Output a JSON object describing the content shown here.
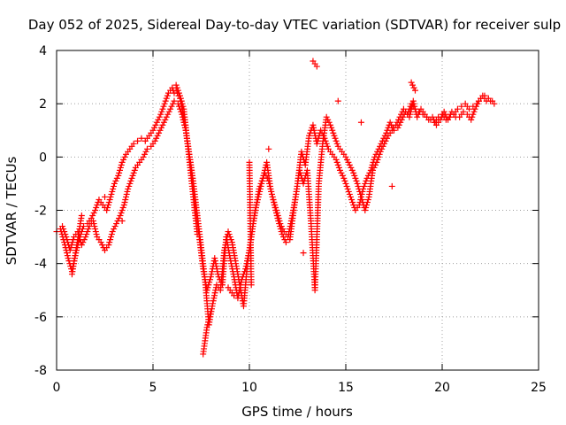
{
  "chart_data": {
    "type": "scatter",
    "title": "Day 052 of 2025, Sidereal Day-to-day VTEC variation (SDTVAR) for receiver sulp",
    "xlabel": "GPS time / hours",
    "ylabel": "SDTVAR / TECUs",
    "xlim": [
      0,
      25
    ],
    "ylim": [
      -8,
      4
    ],
    "x_ticks": [
      "0",
      "5",
      "10",
      "15",
      "20",
      "25"
    ],
    "y_ticks": [
      "4",
      "2",
      "0",
      "-2",
      "-4",
      "-6",
      "-8"
    ],
    "grid": true,
    "marker": "+",
    "series_color": "#ff0000",
    "series": [
      {
        "x": [
          0.0,
          0.2,
          0.4,
          0.6,
          0.8,
          1.0,
          1.2,
          1.4,
          1.6,
          1.8,
          2.0,
          2.2,
          2.4,
          2.6,
          2.8,
          3.0,
          3.2,
          3.4,
          3.6,
          3.8,
          4.0,
          4.2,
          4.4,
          4.6,
          4.8,
          5.0,
          5.2,
          5.4,
          5.6,
          5.8,
          6.0,
          6.1,
          6.2,
          6.4,
          6.6,
          6.8,
          7.0,
          7.2,
          7.4,
          7.6,
          7.8,
          8.0,
          8.2,
          8.4,
          8.6,
          8.8,
          9.0,
          9.2,
          9.4,
          9.6,
          9.8,
          10.0,
          10.2,
          10.5,
          10.8,
          11.0,
          11.2,
          11.4,
          11.6,
          11.8,
          12.0,
          12.2,
          12.4,
          12.6,
          12.8,
          13.0,
          13.2,
          13.4,
          13.6,
          13.8,
          14.0,
          14.2,
          14.4,
          14.6,
          14.8,
          15.0,
          15.2,
          15.4,
          15.6,
          15.8,
          16.0,
          16.2,
          16.4,
          16.6,
          16.8,
          17.0,
          17.2,
          17.4,
          17.6,
          17.8,
          18.0,
          18.2,
          18.4,
          18.6,
          18.8,
          19.0,
          19.2,
          19.4,
          19.6,
          19.8,
          20.0,
          20.2,
          20.4,
          20.6,
          20.8,
          21.0,
          21.2,
          21.4,
          21.6,
          21.8,
          22.0,
          22.2,
          22.4,
          22.6,
          22.7
        ],
        "y": [
          -2.8,
          -2.7,
          -3.2,
          -3.8,
          -4.3,
          -3.6,
          -3.0,
          -2.6,
          -2.5,
          -2.3,
          -2.0,
          -1.6,
          -1.8,
          -2.0,
          -1.5,
          -1.0,
          -0.7,
          -0.2,
          0.1,
          0.3,
          0.5,
          0.6,
          0.7,
          0.6,
          0.8,
          1.0,
          1.3,
          1.6,
          2.0,
          2.4,
          2.6,
          2.4,
          2.5,
          2.2,
          1.5,
          0.5,
          -0.5,
          -1.8,
          -3.0,
          -4.2,
          -5.0,
          -4.5,
          -3.8,
          -4.5,
          -4.8,
          -3.0,
          -3.8,
          -4.5,
          -5.3,
          -4.6,
          -4.2,
          -3.5,
          -2.5,
          -1.2,
          -0.6,
          -0.9,
          -1.5,
          -2.0,
          -2.5,
          -2.8,
          -3.0,
          -2.3,
          -1.5,
          -0.5,
          -1.0,
          -0.5,
          -2.5,
          -5.0,
          -1.0,
          0.5,
          1.5,
          1.2,
          0.8,
          0.4,
          0.2,
          0.0,
          -0.3,
          -0.6,
          -1.0,
          -1.5,
          -2.0,
          -1.5,
          -0.5,
          -0.2,
          0.2,
          0.5,
          0.8,
          1.0,
          1.2,
          1.5,
          1.8,
          1.6,
          2.0,
          1.8,
          1.7,
          1.6,
          1.5,
          1.4,
          1.3,
          1.5,
          1.6,
          1.4,
          1.5,
          1.6,
          1.8,
          1.9,
          2.0,
          1.8,
          1.9,
          2.0,
          2.2,
          2.3,
          2.2,
          2.1,
          2.0
        ]
      },
      {
        "x": [
          0.3,
          0.5,
          0.7,
          0.9,
          1.1,
          1.3,
          1.5,
          1.7,
          1.9,
          2.1,
          2.3,
          2.5,
          2.7,
          2.9,
          3.1,
          3.3,
          3.5,
          3.7,
          3.9,
          4.1,
          4.3,
          4.5,
          4.7,
          4.9,
          5.1,
          5.3,
          5.5,
          5.7,
          5.9,
          6.1,
          6.3,
          6.5,
          6.7,
          6.9,
          7.1,
          7.3,
          7.5,
          7.7,
          7.9,
          8.1,
          8.3,
          8.5,
          8.7,
          8.9,
          9.1,
          9.3,
          9.5,
          9.7,
          9.9,
          10.1,
          10.3,
          10.7,
          10.9,
          11.1,
          11.3,
          11.5,
          11.7,
          11.9,
          12.1,
          12.3,
          12.5,
          12.7,
          12.9,
          13.1,
          13.3,
          13.5,
          13.7,
          13.9,
          14.1,
          14.3,
          14.5,
          14.7,
          14.9,
          15.1,
          15.3,
          15.5,
          15.7,
          15.9,
          16.1,
          16.3,
          16.5,
          16.7,
          16.9,
          17.1,
          17.3,
          17.5,
          17.7,
          17.9,
          18.1,
          18.3,
          18.5,
          18.7,
          18.9,
          19.1,
          19.3,
          19.5,
          19.7,
          19.9,
          20.1,
          20.3,
          20.5,
          20.7,
          20.9,
          21.1,
          21.3,
          21.5,
          21.7,
          21.9,
          22.1,
          22.3,
          22.5
        ],
        "y": [
          -2.6,
          -3.0,
          -3.5,
          -3.0,
          -2.8,
          -3.3,
          -3.0,
          -2.6,
          -2.4,
          -3.0,
          -3.2,
          -3.5,
          -3.3,
          -2.8,
          -2.5,
          -2.2,
          -1.8,
          -1.2,
          -0.8,
          -0.4,
          -0.2,
          0.0,
          0.3,
          0.4,
          0.6,
          0.9,
          1.2,
          1.5,
          1.8,
          2.1,
          2.0,
          1.6,
          1.0,
          0.0,
          -1.0,
          -2.2,
          -3.4,
          -4.6,
          -6.3,
          -5.5,
          -4.8,
          -5.0,
          -3.5,
          -2.8,
          -3.2,
          -4.0,
          -4.8,
          -5.6,
          -4.0,
          -3.0,
          -2.0,
          -0.8,
          -0.2,
          -1.2,
          -1.8,
          -2.4,
          -2.9,
          -3.2,
          -3.1,
          -2.0,
          -1.0,
          0.2,
          -0.3,
          0.8,
          1.2,
          0.5,
          1.0,
          0.7,
          0.3,
          0.1,
          -0.1,
          -0.5,
          -0.8,
          -1.2,
          -1.6,
          -2.0,
          -1.8,
          -1.2,
          -0.8,
          -0.5,
          0.0,
          0.3,
          0.6,
          0.9,
          1.3,
          1.0,
          1.1,
          1.4,
          1.7,
          1.5,
          2.1,
          1.5,
          1.8,
          1.6,
          1.4,
          1.5,
          1.2,
          1.4,
          1.7,
          1.4,
          1.7,
          1.5,
          1.5,
          1.7,
          1.6,
          1.4,
          1.8,
          2.1,
          2.3,
          2.1,
          2.1
        ]
      },
      {
        "x": [
          7.6,
          7.8,
          8.0,
          13.3,
          13.4,
          13.5,
          10.0,
          10.1,
          6.2,
          6.4,
          6.6,
          7.3,
          8.9,
          9.2,
          11.0,
          12.8,
          14.6,
          15.8,
          17.4,
          18.4,
          18.6,
          3.4,
          1.3,
          0.8,
          2.5
        ],
        "y": [
          -7.4,
          -6.4,
          -5.8,
          3.6,
          3.5,
          3.4,
          -0.2,
          -4.8,
          2.7,
          2.3,
          1.8,
          -2.9,
          -4.9,
          -5.2,
          0.3,
          -3.6,
          2.1,
          1.3,
          -1.1,
          2.8,
          2.5,
          -2.4,
          -2.2,
          -4.4,
          -1.5
        ]
      }
    ]
  }
}
